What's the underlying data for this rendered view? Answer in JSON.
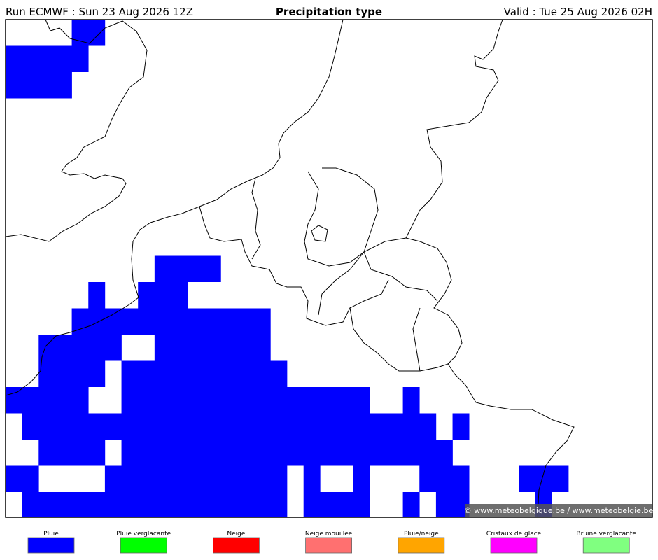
{
  "header": {
    "run": "Run ECMWF : Sun 23 Aug 2026 12Z",
    "title": "Precipitation type",
    "valid": "Valid : Tue 25 Aug 2026 02H"
  },
  "legend": [
    "Pluie",
    "Pluie verglacante",
    "Neige",
    "Neige mouillee",
    "Pluie/neige",
    "Cristaux de glace",
    "Bruine verglacante"
  ],
  "copyright": "© www.meteobelgique.be / www.meteobelgie.be"
}
